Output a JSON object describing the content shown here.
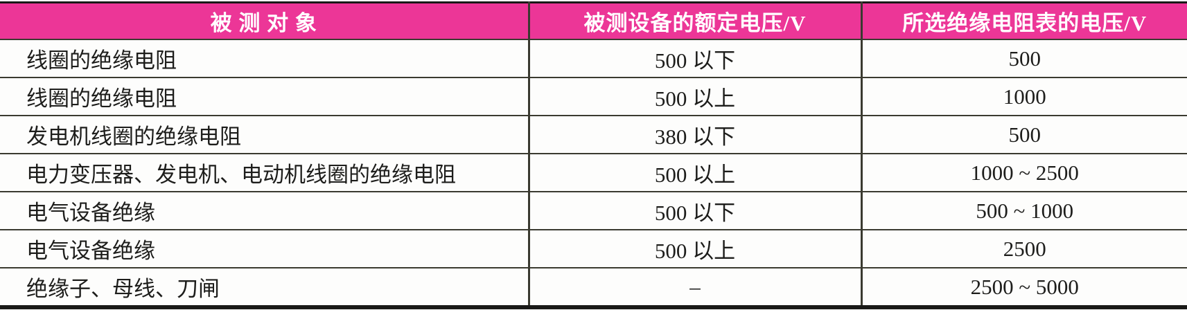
{
  "table": {
    "title_semantic": "insulation-resistance-meter-voltage-selection-table",
    "columns": [
      {
        "label": "被 测 对 象"
      },
      {
        "label": "被测设备的额定电压/V"
      },
      {
        "label": "所选绝缘电阻表的电压/V"
      }
    ],
    "rows": [
      [
        "线圈的绝缘电阻",
        "500 以下",
        "500"
      ],
      [
        "线圈的绝缘电阻",
        "500 以上",
        "1000"
      ],
      [
        "发电机线圈的绝缘电阻",
        "380 以下",
        "500"
      ],
      [
        "电力变压器、发电机、电动机线圈的绝缘电阻",
        "500 以上",
        "1000 ~ 2500"
      ],
      [
        "电气设备绝缘",
        "500 以下",
        "500 ~ 1000"
      ],
      [
        "电气设备绝缘",
        "500 以上",
        "2500"
      ],
      [
        "绝缘子、母线、刀闸",
        "–",
        "2500 ~ 5000"
      ]
    ],
    "colors": {
      "header_bg": "#ec3697",
      "header_text": "#ffffff",
      "rule": "#3a3a30",
      "frame": "#191917",
      "body_text": "#1d1d1b"
    }
  }
}
